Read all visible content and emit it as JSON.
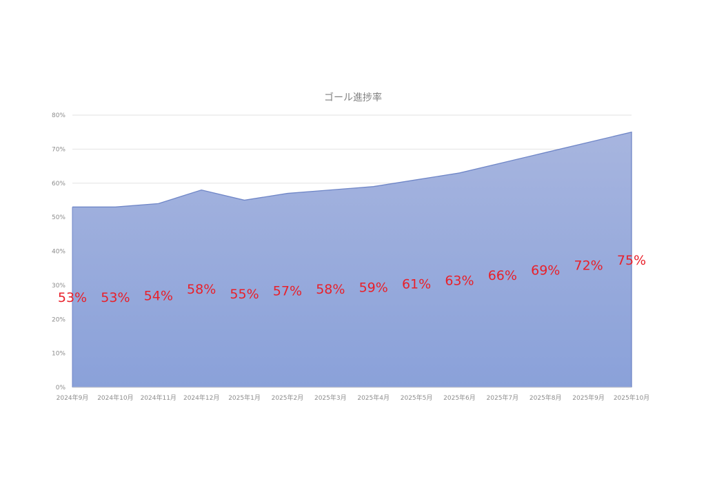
{
  "chart_data": {
    "type": "area",
    "title": "ゴール進捗率",
    "categories": [
      "2024年9月",
      "2024年10月",
      "2024年11月",
      "2024年12月",
      "2025年1月",
      "2025年2月",
      "2025年3月",
      "2025年4月",
      "2025年5月",
      "2025年6月",
      "2025年7月",
      "2025年8月",
      "2025年9月",
      "2025年10月"
    ],
    "values": [
      53,
      53,
      54,
      58,
      55,
      57,
      58,
      59,
      61,
      63,
      66,
      69,
      72,
      75
    ],
    "data_labels": [
      "53%",
      "53%",
      "54%",
      "58%",
      "55%",
      "57%",
      "58%",
      "59%",
      "61%",
      "63%",
      "66%",
      "69%",
      "72%",
      "75%"
    ],
    "ylim": [
      0,
      80
    ],
    "yticks": [
      "0%",
      "10%",
      "20%",
      "30%",
      "40%",
      "50%",
      "60%",
      "70%",
      "80%"
    ],
    "grid": true,
    "colors": {
      "fill_top": "#a7b5df",
      "fill_bottom": "#8aa1d9",
      "line": "#6f86c7",
      "label": "#e8202a",
      "grid": "#e2e2e2",
      "tick": "#8c8c8c",
      "title": "#808080"
    }
  }
}
